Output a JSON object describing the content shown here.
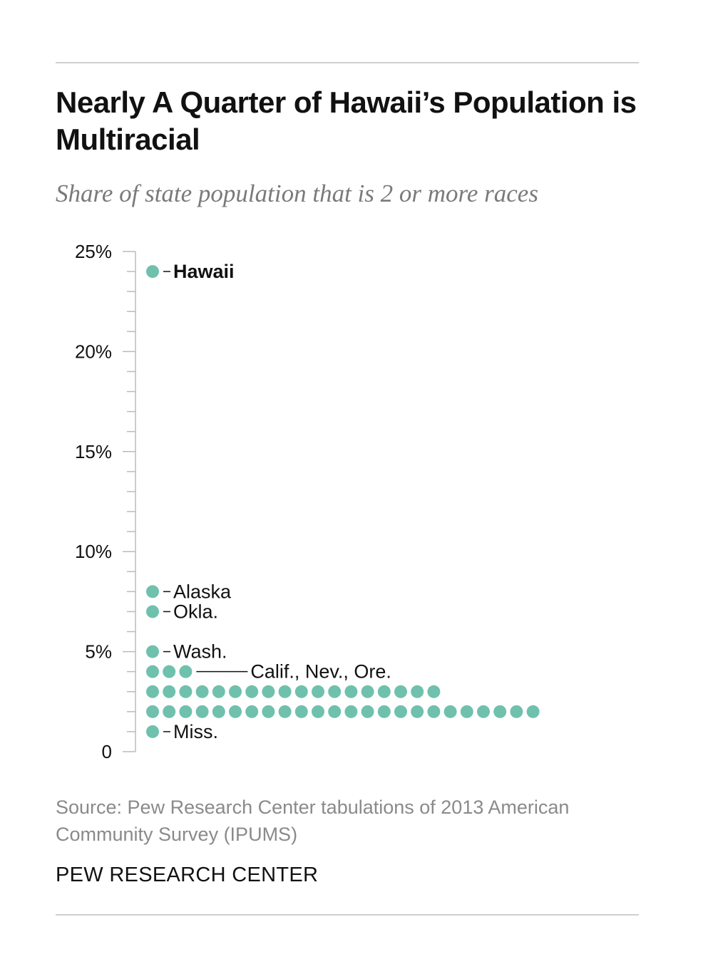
{
  "title": "Nearly A Quarter of Hawaii’s Population is Multiracial",
  "subtitle": "Share of state population that is 2 or more races",
  "source": "Source: Pew Research Center tabulations of 2013 American Community Survey (IPUMS)",
  "brand": "PEW RESEARCH CENTER",
  "colors": {
    "dot": "#6fc1ad",
    "axis": "#bbbbbb",
    "rule": "#cfcfcf",
    "text": "#111111",
    "muted": "#8a8a8a"
  },
  "chart_data": {
    "type": "scatter",
    "title": "Nearly A Quarter of Hawaii’s Population is Multiracial",
    "subtitle": "Share of state population that is 2 or more races",
    "xlabel": "",
    "ylabel": "",
    "ylim": [
      0,
      25
    ],
    "yticks": [
      0,
      5,
      10,
      15,
      20,
      25
    ],
    "ytick_labels": [
      "0",
      "5%",
      "10%",
      "15%",
      "20%",
      "25%"
    ],
    "grid": false,
    "legend": "none",
    "rows": [
      {
        "value": 24,
        "count": 1,
        "label": "Hawaii",
        "label_bold": true,
        "connector": "short"
      },
      {
        "value": 8,
        "count": 1,
        "label": "Alaska",
        "label_bold": false,
        "connector": "short"
      },
      {
        "value": 7,
        "count": 1,
        "label": "Okla.",
        "label_bold": false,
        "connector": "short"
      },
      {
        "value": 5,
        "count": 1,
        "label": "Wash.",
        "label_bold": false,
        "connector": "short"
      },
      {
        "value": 4,
        "count": 3,
        "label": "Calif., Nev., Ore.",
        "label_bold": false,
        "connector": "long"
      },
      {
        "value": 3,
        "count": 18,
        "label": "",
        "label_bold": false,
        "connector": "none"
      },
      {
        "value": 2,
        "count": 24,
        "label": "",
        "label_bold": false,
        "connector": "none"
      },
      {
        "value": 1,
        "count": 1,
        "label": "Miss.",
        "label_bold": false,
        "connector": "short"
      }
    ]
  }
}
